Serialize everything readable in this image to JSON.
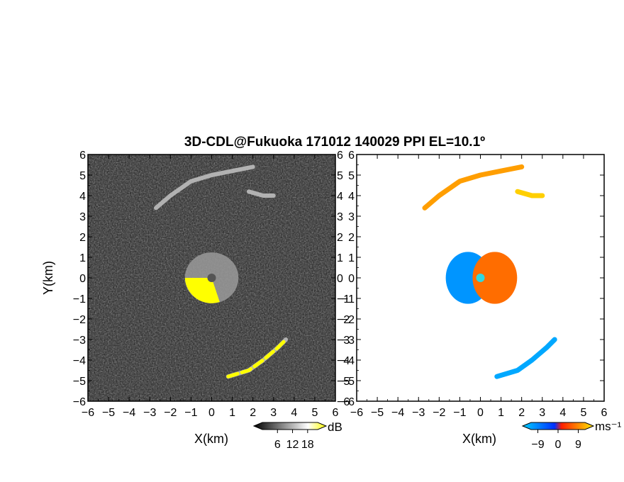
{
  "figure": {
    "title": "3D-CDL@Fukuoka 171012 140029 PPI EL=10.1º"
  },
  "chart_data": [
    {
      "type": "heatmap",
      "panel": "left",
      "quantity": "signal intensity",
      "xlabel": "X(km)",
      "ylabel": "Y(km)",
      "xlim": [
        -6,
        6
      ],
      "ylim": [
        -6,
        6
      ],
      "xticks": [
        -6,
        -5,
        -4,
        -3,
        -2,
        -1,
        0,
        1,
        2,
        3,
        4,
        5,
        6
      ],
      "yticks": [
        -6,
        -5,
        -4,
        -3,
        -2,
        -1,
        0,
        1,
        2,
        3,
        4,
        5,
        6
      ],
      "colorbar": {
        "label": "dB",
        "ticks": [
          6,
          12,
          18
        ],
        "colors": [
          "#000000",
          "#ffffff",
          "#ffff00"
        ]
      },
      "features": [
        {
          "kind": "arc",
          "points": [
            [
              -2.7,
              3.4
            ],
            [
              -2.0,
              4.0
            ],
            [
              -1.0,
              4.7
            ],
            [
              0.0,
              5.0
            ],
            [
              1.0,
              5.2
            ],
            [
              2.0,
              5.4
            ]
          ]
        },
        {
          "kind": "arc",
          "points": [
            [
              1.8,
              4.2
            ],
            [
              2.5,
              4.0
            ],
            [
              3.0,
              4.0
            ]
          ]
        },
        {
          "kind": "arc",
          "points": [
            [
              0.8,
              -4.8
            ],
            [
              1.8,
              -4.5
            ],
            [
              2.5,
              -4.0
            ],
            [
              3.2,
              -3.4
            ],
            [
              3.6,
              -3.0
            ]
          ]
        },
        {
          "kind": "blob",
          "center": [
            0.0,
            0.0
          ],
          "radius_km": 1.3
        }
      ]
    },
    {
      "type": "heatmap",
      "panel": "right",
      "quantity": "Doppler velocity",
      "xlabel": "X(km)",
      "ylabel": "",
      "xlim": [
        -6,
        6
      ],
      "ylim": [
        -6,
        6
      ],
      "xticks": [
        -6,
        -5,
        -4,
        -3,
        -2,
        -1,
        0,
        1,
        2,
        3,
        4,
        5,
        6
      ],
      "yticks": [
        -6,
        -5,
        -4,
        -3,
        -2,
        -1,
        0,
        1,
        2,
        3,
        4,
        5,
        6
      ],
      "colorbar": {
        "label": "ms⁻¹",
        "ticks": [
          -9,
          0,
          9
        ],
        "colors": [
          "#00c8ff",
          "#0033ff",
          "#ff2200",
          "#ffee00"
        ]
      },
      "features": [
        {
          "kind": "arc",
          "points": [
            [
              -2.7,
              3.4
            ],
            [
              -2.0,
              4.0
            ],
            [
              -1.0,
              4.7
            ],
            [
              0.0,
              5.0
            ],
            [
              1.0,
              5.2
            ],
            [
              2.0,
              5.4
            ]
          ],
          "velocity": 6
        },
        {
          "kind": "arc",
          "points": [
            [
              1.8,
              4.2
            ],
            [
              2.5,
              4.0
            ],
            [
              3.0,
              4.0
            ]
          ],
          "velocity": 8
        },
        {
          "kind": "arc",
          "points": [
            [
              0.8,
              -4.8
            ],
            [
              1.8,
              -4.5
            ],
            [
              2.5,
              -4.0
            ],
            [
              3.2,
              -3.4
            ],
            [
              3.6,
              -3.0
            ]
          ],
          "velocity": -7
        },
        {
          "kind": "blob",
          "center": [
            -0.6,
            0.0
          ],
          "radius_km": 1.2,
          "velocity": -6
        },
        {
          "kind": "blob",
          "center": [
            0.7,
            0.0
          ],
          "radius_km": 1.2,
          "velocity": 4
        }
      ]
    }
  ]
}
